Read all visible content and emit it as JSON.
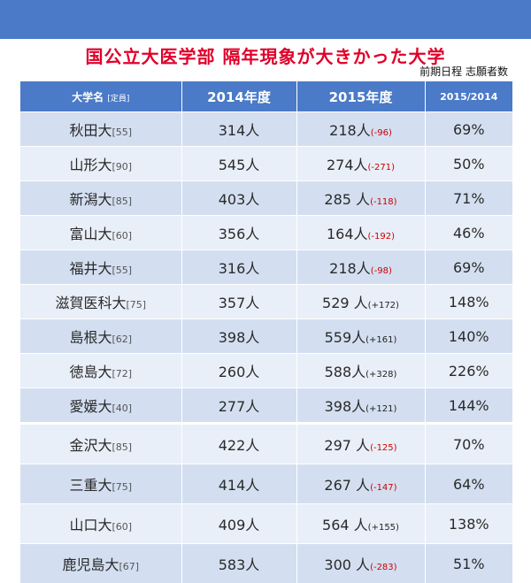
{
  "title": "国公立大医学部 隔年現象が大きかった大学",
  "subtitle": "前期日程 志願者数",
  "header": {
    "university": "大学名",
    "quota": "[定員]",
    "y2014": "2014年度",
    "y2015": "2015年度",
    "ratio": "2015/2014"
  },
  "rows": [
    {
      "name": "秋田大",
      "quota": "[55]",
      "y2014": "314人",
      "y2015": "218人",
      "diff": "(-96)",
      "ratio": "69%"
    },
    {
      "name": "山形大",
      "quota": "[90]",
      "y2014": "545人",
      "y2015": "274人",
      "diff": "(-271)",
      "ratio": "50%"
    },
    {
      "name": "新潟大",
      "quota": "[85]",
      "y2014": "403人",
      "y2015": "285 人",
      "diff": "(-118)",
      "ratio": "71%"
    },
    {
      "name": "富山大",
      "quota": "[60]",
      "y2014": "356人",
      "y2015": "164人",
      "diff": "(-192)",
      "ratio": "46%"
    },
    {
      "name": "福井大",
      "quota": "[55]",
      "y2014": "316人",
      "y2015": "218人",
      "diff": "(-98)",
      "ratio": "69%"
    },
    {
      "name": "滋賀医科大",
      "quota": "[75]",
      "y2014": "357人",
      "y2015": "529 人",
      "diff": "(+172)",
      "ratio": "148%"
    },
    {
      "name": "島根大",
      "quota": "[62]",
      "y2014": "398人",
      "y2015": "559人",
      "diff": "(+161)",
      "ratio": "140%"
    },
    {
      "name": "徳島大",
      "quota": "[72]",
      "y2014": "260人",
      "y2015": "588人",
      "diff": "(+328)",
      "ratio": "226%"
    },
    {
      "name": "愛媛大",
      "quota": "[40]",
      "y2014": "277人",
      "y2015": "398人",
      "diff": "(+121)",
      "ratio": "144%"
    },
    {
      "name": "金沢大",
      "quota": "[85]",
      "y2014": "422人",
      "y2015": "297 人",
      "diff": "(-125)",
      "ratio": "70%"
    },
    {
      "name": "三重大",
      "quota": "[75]",
      "y2014": "414人",
      "y2015": "267 人",
      "diff": "(-147)",
      "ratio": "64%"
    },
    {
      "name": "山口大",
      "quota": "[60]",
      "y2014": "409人",
      "y2015": "564 人",
      "diff": "(+155)",
      "ratio": "138%"
    },
    {
      "name": "鹿児島大",
      "quota": "[67]",
      "y2014": "583人",
      "y2015": "300 人",
      "diff": "(-283)",
      "ratio": "51%"
    }
  ]
}
